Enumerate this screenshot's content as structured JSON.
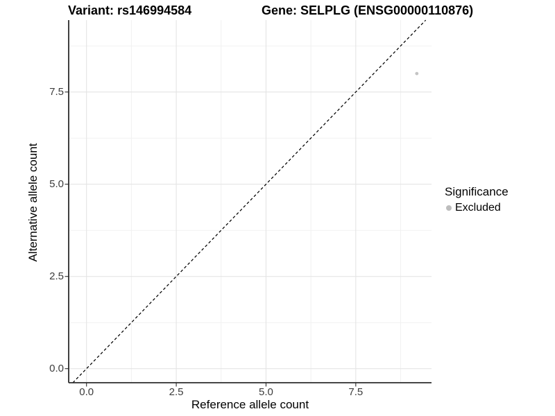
{
  "header": {
    "variant_title": "Variant: rs146994584",
    "gene_title": "Gene: SELPLG (ENSG00000110876)"
  },
  "axes": {
    "x_label": "Reference allele count",
    "y_label": "Alternative allele count",
    "x_tick_labels": [
      "0.0",
      "2.5",
      "5.0",
      "7.5"
    ],
    "y_tick_labels": [
      "0.0",
      "2.5",
      "5.0",
      "7.5"
    ]
  },
  "legend": {
    "title": "Significance",
    "items": [
      {
        "label": "Excluded",
        "marker": "circle-icon",
        "color": "#bdbdbd"
      }
    ]
  },
  "colors": {
    "point": "#c4c4c4",
    "legend_marker": "#bdbdbd",
    "abline": "#000000",
    "grid_major": "#e4e4e4",
    "grid_minor": "#f1f1f1",
    "axis_line": "#2b2b2b",
    "tick_label": "#3c3c3c"
  },
  "chart_data": {
    "type": "scatter",
    "title": "Variant: rs146994584 | Gene: SELPLG (ENSG00000110876)",
    "xlabel": "Reference allele count",
    "ylabel": "Alternative allele count",
    "x_ticks": [
      0.0,
      2.5,
      5.0,
      7.5
    ],
    "y_ticks": [
      0.0,
      2.5,
      5.0,
      7.5
    ],
    "xlim": [
      -0.5,
      9.6
    ],
    "ylim": [
      -0.38,
      9.45
    ],
    "grid": "major+minor",
    "legend_position": "right",
    "series": [
      {
        "name": "Excluded",
        "points": [
          {
            "x": 9.2,
            "y": 8.0
          }
        ]
      }
    ],
    "reference_line": {
      "type": "abline",
      "slope": 1,
      "intercept": 0,
      "linetype": "dashed"
    }
  }
}
